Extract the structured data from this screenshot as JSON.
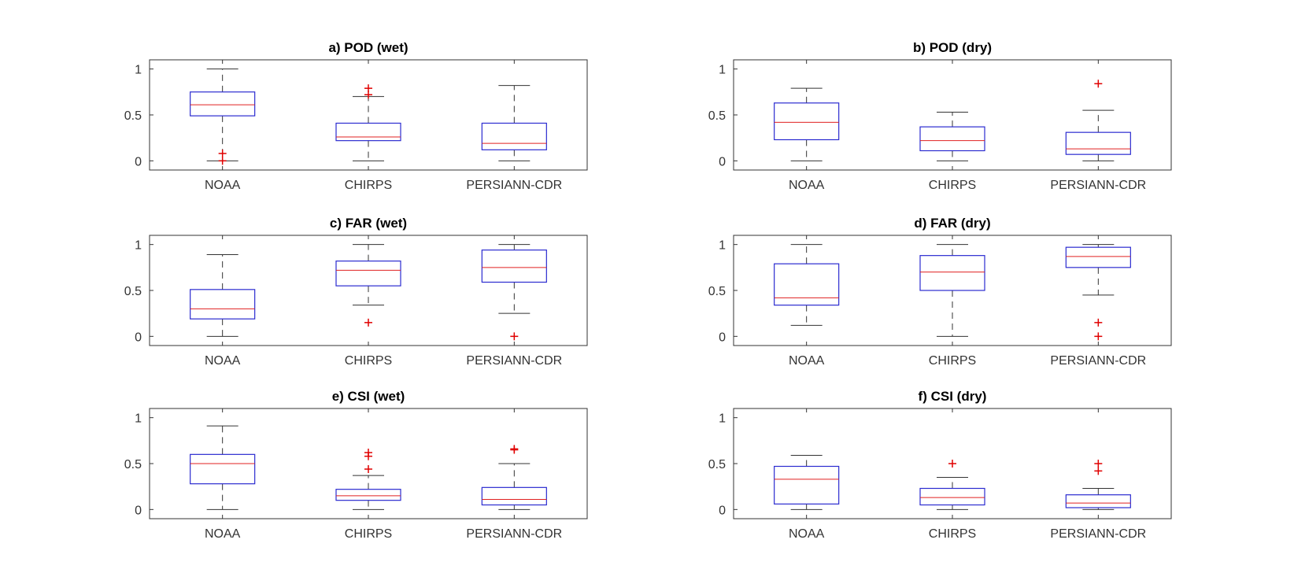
{
  "chart_data": [
    {
      "type": "box",
      "title": "a) POD (wet)",
      "categories": [
        "NOAA",
        "CHIRPS",
        "PERSIANN-CDR"
      ],
      "ylim": [
        -0.1,
        1.1
      ],
      "yticks": [
        0,
        0.5,
        1
      ],
      "ytick_labels": [
        "0",
        "0.5",
        "1"
      ],
      "boxes": [
        {
          "whisker_low": 0,
          "q1": 0.49,
          "median": 0.61,
          "q3": 0.75,
          "whisker_high": 1.0,
          "outliers": [
            0.08,
            0.0
          ]
        },
        {
          "whisker_low": 0,
          "q1": 0.22,
          "median": 0.26,
          "q3": 0.41,
          "whisker_high": 0.7,
          "outliers": [
            0.72,
            0.79
          ]
        },
        {
          "whisker_low": 0,
          "q1": 0.12,
          "median": 0.19,
          "q3": 0.41,
          "whisker_high": 0.82,
          "outliers": []
        }
      ]
    },
    {
      "type": "box",
      "title": "b) POD (dry)",
      "categories": [
        "NOAA",
        "CHIRPS",
        "PERSIANN-CDR"
      ],
      "ylim": [
        -0.1,
        1.1
      ],
      "yticks": [
        0,
        0.5,
        1
      ],
      "ytick_labels": [
        "0",
        "0.5",
        "1"
      ],
      "boxes": [
        {
          "whisker_low": 0,
          "q1": 0.23,
          "median": 0.42,
          "q3": 0.63,
          "whisker_high": 0.79,
          "outliers": []
        },
        {
          "whisker_low": 0,
          "q1": 0.11,
          "median": 0.22,
          "q3": 0.37,
          "whisker_high": 0.53,
          "outliers": []
        },
        {
          "whisker_low": 0,
          "q1": 0.07,
          "median": 0.13,
          "q3": 0.31,
          "whisker_high": 0.55,
          "outliers": [
            0.84
          ]
        }
      ]
    },
    {
      "type": "box",
      "title": "c) FAR (wet)",
      "categories": [
        "NOAA",
        "CHIRPS",
        "PERSIANN-CDR"
      ],
      "ylim": [
        -0.1,
        1.1
      ],
      "yticks": [
        0,
        0.5,
        1
      ],
      "ytick_labels": [
        "0",
        "0.5",
        "1"
      ],
      "boxes": [
        {
          "whisker_low": 0,
          "q1": 0.19,
          "median": 0.3,
          "q3": 0.51,
          "whisker_high": 0.89,
          "outliers": []
        },
        {
          "whisker_low": 0.34,
          "q1": 0.55,
          "median": 0.72,
          "q3": 0.82,
          "whisker_high": 1.0,
          "outliers": [
            0.15
          ]
        },
        {
          "whisker_low": 0.25,
          "q1": 0.59,
          "median": 0.75,
          "q3": 0.94,
          "whisker_high": 1.0,
          "outliers": [
            0.0
          ]
        }
      ]
    },
    {
      "type": "box",
      "title": "d) FAR (dry)",
      "categories": [
        "NOAA",
        "CHIRPS",
        "PERSIANN-CDR"
      ],
      "ylim": [
        -0.1,
        1.1
      ],
      "yticks": [
        0,
        0.5,
        1
      ],
      "ytick_labels": [
        "0",
        "0.5",
        "1"
      ],
      "boxes": [
        {
          "whisker_low": 0.12,
          "q1": 0.34,
          "median": 0.42,
          "q3": 0.79,
          "whisker_high": 1.0,
          "outliers": []
        },
        {
          "whisker_low": 0,
          "q1": 0.5,
          "median": 0.7,
          "q3": 0.88,
          "whisker_high": 1.0,
          "outliers": []
        },
        {
          "whisker_low": 0.45,
          "q1": 0.75,
          "median": 0.87,
          "q3": 0.97,
          "whisker_high": 1.0,
          "outliers": [
            0.15,
            0.0
          ]
        }
      ]
    },
    {
      "type": "box",
      "title": "e) CSI (wet)",
      "categories": [
        "NOAA",
        "CHIRPS",
        "PERSIANN-CDR"
      ],
      "ylim": [
        -0.1,
        1.1
      ],
      "yticks": [
        0,
        0.5,
        1
      ],
      "ytick_labels": [
        "0",
        "0.5",
        "1"
      ],
      "boxes": [
        {
          "whisker_low": 0,
          "q1": 0.28,
          "median": 0.5,
          "q3": 0.6,
          "whisker_high": 0.91,
          "outliers": []
        },
        {
          "whisker_low": 0,
          "q1": 0.1,
          "median": 0.15,
          "q3": 0.22,
          "whisker_high": 0.37,
          "outliers": [
            0.44,
            0.58,
            0.62
          ]
        },
        {
          "whisker_low": 0,
          "q1": 0.05,
          "median": 0.11,
          "q3": 0.24,
          "whisker_high": 0.5,
          "outliers": [
            0.65,
            0.66
          ]
        }
      ]
    },
    {
      "type": "box",
      "title": "f) CSI (dry)",
      "categories": [
        "NOAA",
        "CHIRPS",
        "PERSIANN-CDR"
      ],
      "ylim": [
        -0.1,
        1.1
      ],
      "yticks": [
        0,
        0.5,
        1
      ],
      "ytick_labels": [
        "0",
        "0.5",
        "1"
      ],
      "boxes": [
        {
          "whisker_low": 0,
          "q1": 0.06,
          "median": 0.33,
          "q3": 0.47,
          "whisker_high": 0.59,
          "outliers": []
        },
        {
          "whisker_low": 0,
          "q1": 0.05,
          "median": 0.13,
          "q3": 0.23,
          "whisker_high": 0.35,
          "outliers": [
            0.5
          ]
        },
        {
          "whisker_low": 0,
          "q1": 0.02,
          "median": 0.07,
          "q3": 0.16,
          "whisker_high": 0.23,
          "outliers": [
            0.42,
            0.5
          ]
        }
      ]
    }
  ],
  "colors": {
    "box": "#2b2bd0",
    "median": "#e02020",
    "whisker": "#333333",
    "outlier": "#e00000"
  }
}
